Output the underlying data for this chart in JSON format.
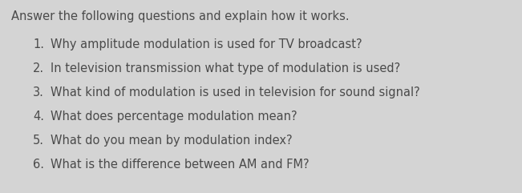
{
  "background_color": "#d4d4d4",
  "header": "Answer the following questions and explain how it works.",
  "header_fontsize": 10.5,
  "header_fontweight": "normal",
  "header_color": "#4a4a4a",
  "questions": [
    "Why amplitude modulation is used for TV broadcast?",
    "In television transmission what type of modulation is used?",
    "What kind of modulation is used in television for sound signal?",
    "What does percentage modulation mean?",
    "What do you mean by modulation index?",
    "What is the difference between AM and FM?"
  ],
  "question_fontsize": 10.5,
  "question_color": "#4a4a4a",
  "fig_width": 6.51,
  "fig_height": 2.41,
  "dpi": 100
}
